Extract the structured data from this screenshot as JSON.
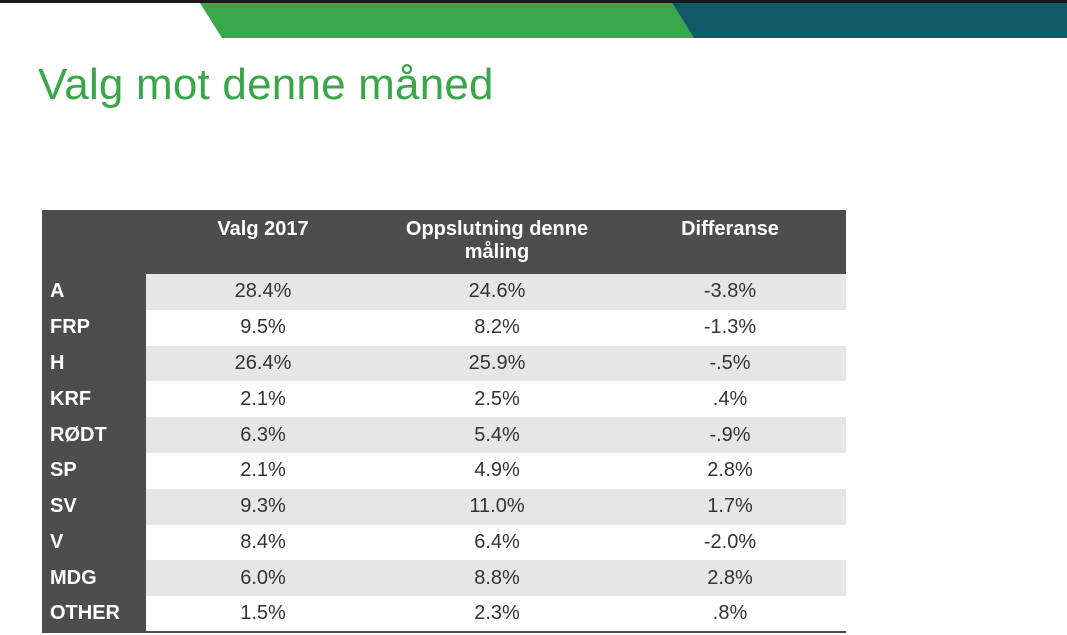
{
  "slide": {
    "title": "Valg mot denne måned",
    "colors": {
      "accent_green": "#3aa64a",
      "accent_teal": "#0f5a66",
      "table_header": "#4d4d4d",
      "row_shade": "#e6e6e6"
    }
  },
  "table": {
    "columns": [
      "",
      "Valg 2017",
      "Oppslutning denne måling",
      "Differanse"
    ],
    "rows": [
      {
        "party": "A",
        "valg_2017": "28.4%",
        "oppslutning": "24.6%",
        "differanse": "-3.8%"
      },
      {
        "party": "FRP",
        "valg_2017": "9.5%",
        "oppslutning": "8.2%",
        "differanse": "-1.3%"
      },
      {
        "party": "H",
        "valg_2017": "26.4%",
        "oppslutning": "25.9%",
        "differanse": "-.5%"
      },
      {
        "party": "KRF",
        "valg_2017": "2.1%",
        "oppslutning": "2.5%",
        "differanse": ".4%"
      },
      {
        "party": "RØDT",
        "valg_2017": "6.3%",
        "oppslutning": "5.4%",
        "differanse": "-.9%"
      },
      {
        "party": "SP",
        "valg_2017": "2.1%",
        "oppslutning": "4.9%",
        "differanse": "2.8%"
      },
      {
        "party": "SV",
        "valg_2017": "9.3%",
        "oppslutning": "11.0%",
        "differanse": "1.7%"
      },
      {
        "party": "V",
        "valg_2017": "8.4%",
        "oppslutning": "6.4%",
        "differanse": "-2.0%"
      },
      {
        "party": "MDG",
        "valg_2017": "6.0%",
        "oppslutning": "8.8%",
        "differanse": "2.8%"
      },
      {
        "party": "OTHER",
        "valg_2017": "1.5%",
        "oppslutning": "2.3%",
        "differanse": ".8%"
      }
    ]
  }
}
